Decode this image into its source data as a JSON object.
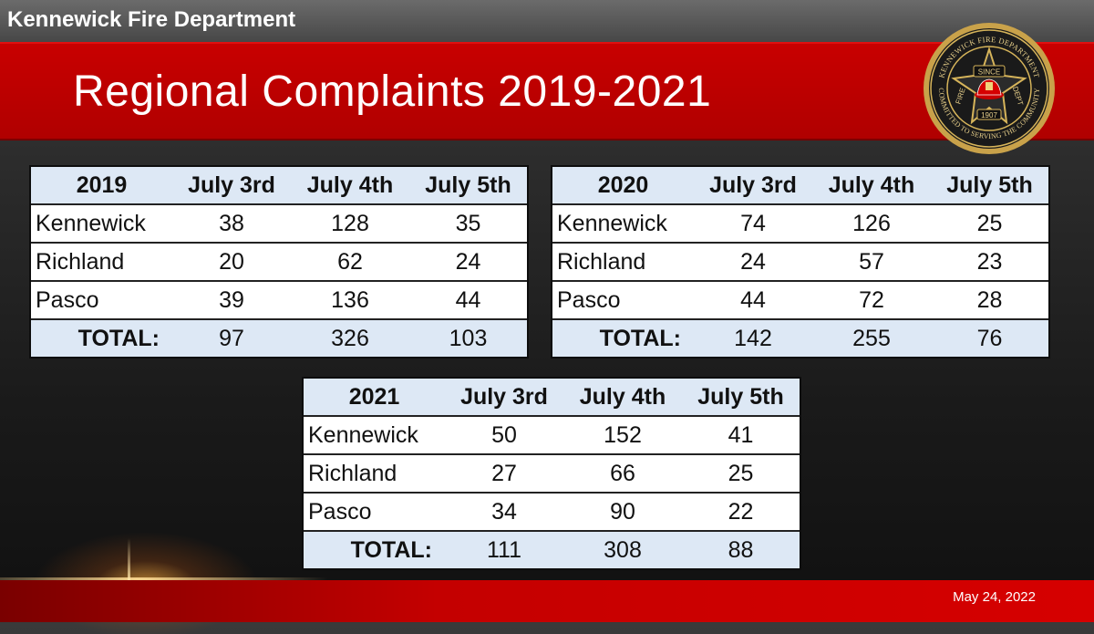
{
  "header": {
    "organization": "Kennewick Fire Department"
  },
  "slide": {
    "title": "Regional Complaints 2019-2021"
  },
  "logo": {
    "top_text": "KENNEWICK FIRE DEPARTMENT",
    "bottom_text": "COMMITTED TO SERVING THE COMMUNITY",
    "since": "SINCE",
    "year": "1907",
    "fire": "FIRE",
    "dept": "DEPT"
  },
  "tables": [
    {
      "year": "2019",
      "columns": [
        "July 3rd",
        "July 4th",
        "July 5th"
      ],
      "rows": [
        {
          "city": "Kennewick",
          "values": [
            "38",
            "128",
            "35"
          ]
        },
        {
          "city": "Richland",
          "values": [
            "20",
            "62",
            "24"
          ]
        },
        {
          "city": "Pasco",
          "values": [
            "39",
            "136",
            "44"
          ]
        }
      ],
      "total_label": "TOTAL:",
      "totals": [
        "97",
        "326",
        "103"
      ]
    },
    {
      "year": "2020",
      "columns": [
        "July 3rd",
        "July 4th",
        "July 5th"
      ],
      "rows": [
        {
          "city": "Kennewick",
          "values": [
            "74",
            "126",
            "25"
          ]
        },
        {
          "city": "Richland",
          "values": [
            "24",
            "57",
            "23"
          ]
        },
        {
          "city": "Pasco",
          "values": [
            "44",
            "72",
            "28"
          ]
        }
      ],
      "total_label": "TOTAL:",
      "totals": [
        "142",
        "255",
        "76"
      ]
    },
    {
      "year": "2021",
      "columns": [
        "July 3rd",
        "July 4th",
        "July 5th"
      ],
      "rows": [
        {
          "city": "Kennewick",
          "values": [
            "50",
            "152",
            "41"
          ]
        },
        {
          "city": "Richland",
          "values": [
            "27",
            "66",
            "25"
          ]
        },
        {
          "city": "Pasco",
          "values": [
            "34",
            "90",
            "22"
          ]
        }
      ],
      "total_label": "TOTAL:",
      "totals": [
        "111",
        "308",
        "88"
      ]
    }
  ],
  "footer": {
    "date": "May 24, 2022"
  }
}
